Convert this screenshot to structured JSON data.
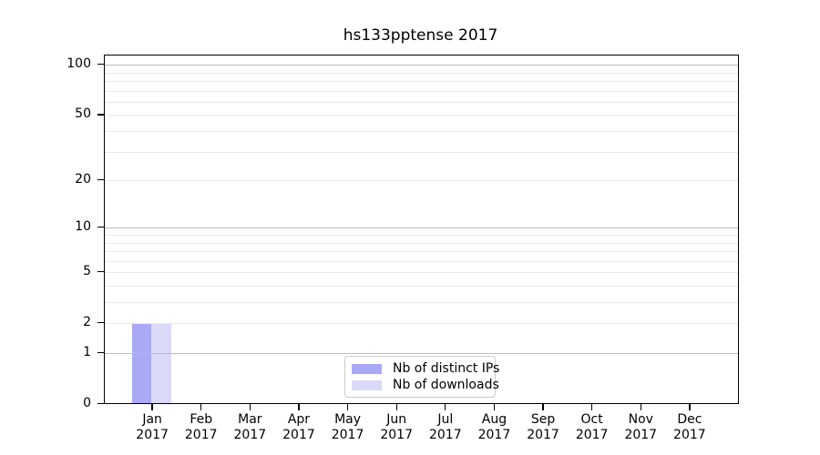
{
  "chart_data": {
    "type": "bar",
    "title": "hs133pptense 2017",
    "categories": [
      "Jan",
      "Feb",
      "Mar",
      "Apr",
      "May",
      "Jun",
      "Jul",
      "Aug",
      "Sep",
      "Oct",
      "Nov",
      "Dec"
    ],
    "category_year": "2017",
    "series": [
      {
        "name": "Nb of distinct IPs",
        "color": "#a9a9f6",
        "values": [
          2,
          0,
          0,
          0,
          0,
          0,
          0,
          0,
          0,
          0,
          0,
          0
        ]
      },
      {
        "name": "Nb of downloads",
        "color": "#dadaf8",
        "values": [
          2,
          0,
          0,
          0,
          0,
          0,
          0,
          0,
          0,
          0,
          0,
          0
        ]
      }
    ],
    "yscale": "log1p",
    "ylim": [
      0,
      110
    ],
    "yticks": [
      0,
      1,
      2,
      5,
      10,
      20,
      50,
      100
    ],
    "grid": {
      "major_values": [
        1,
        10,
        100
      ],
      "minor_values": [
        2,
        3,
        4,
        5,
        6,
        7,
        8,
        9,
        20,
        30,
        40,
        50,
        60,
        70,
        80,
        90
      ],
      "major_color": "#bcbcbc",
      "minor_color": "#e9e9e9"
    },
    "legend": {
      "position": "lower center",
      "entries": [
        "Nb of distinct IPs",
        "Nb of downloads"
      ]
    },
    "colors": {
      "spine": "#000000",
      "background": "#ffffff",
      "text": "#000000"
    }
  }
}
